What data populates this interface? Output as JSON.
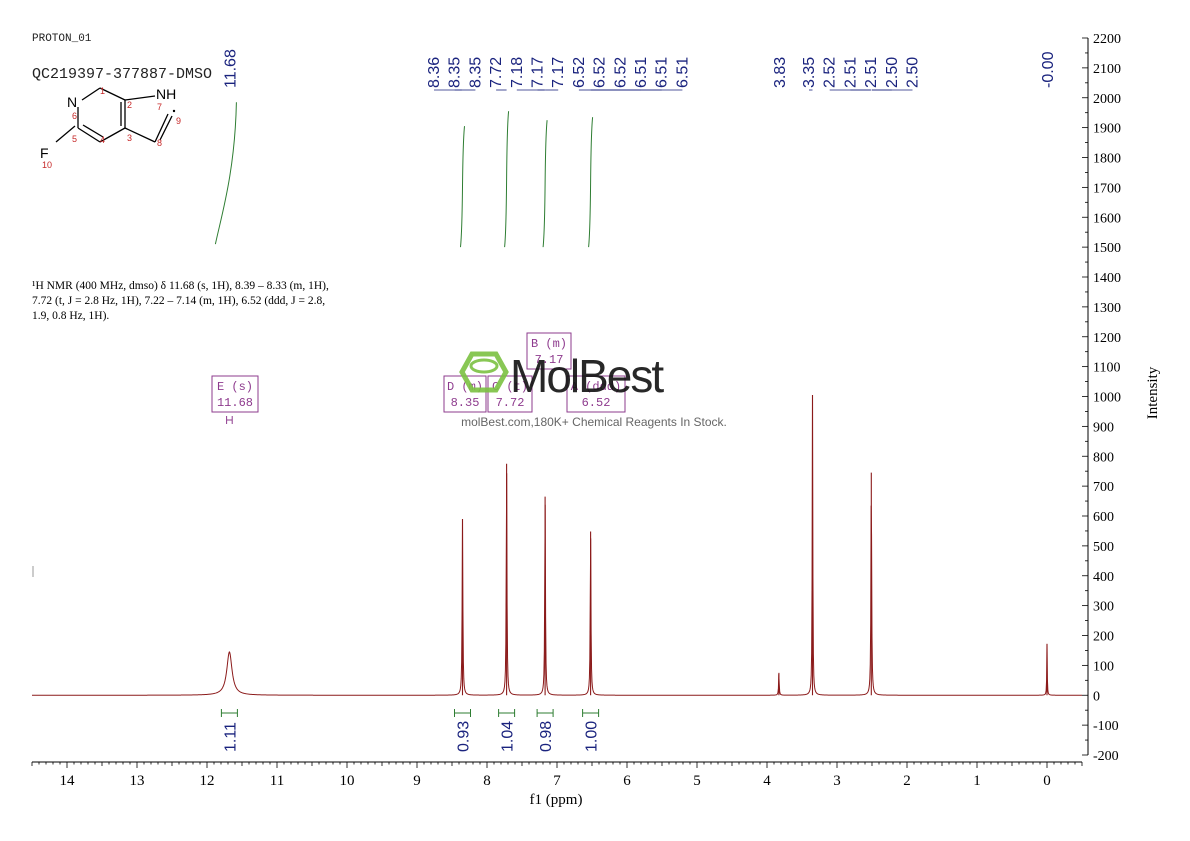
{
  "header": {
    "experiment": "PROTON_01",
    "sample_id": "QC219397-377887-DMSO"
  },
  "molecule": {
    "atoms": {
      "N_ring": "N",
      "NH": "NH",
      "F": "F"
    },
    "numbers": [
      "1",
      "2",
      "3",
      "4",
      "5",
      "6",
      "7",
      "8",
      "9",
      "10"
    ]
  },
  "description": {
    "line1": "¹H NMR (400 MHz, dmso) δ 11.68 (s, 1H), 8.39 – 8.33 (m, 1H),",
    "line2": "7.72 (t, J = 2.8 Hz, 1H), 7.22 – 7.14 (m, 1H), 6.52 (ddd, J = 2.8,",
    "line3": "1.9, 0.8 Hz, 1H)."
  },
  "watermark": {
    "brand": "MolBest",
    "tagline": "molBest.com,180K+ Chemical Reagents In Stock."
  },
  "colors": {
    "spectrum": "#8b1a1a",
    "peak_label": "#1a237e",
    "integral": "#2e7d32",
    "multiplet_box": "#8e3b8e",
    "axis": "#000000",
    "watermark": "#7cc242"
  },
  "chart_data": {
    "type": "line",
    "xlabel": "f1 (ppm)",
    "ylabel": "Intensity",
    "xlim": [
      14.5,
      -0.5
    ],
    "ylim": [
      -200,
      2200
    ],
    "x_ticks": [
      14,
      13,
      12,
      11,
      10,
      9,
      8,
      7,
      6,
      5,
      4,
      3,
      2,
      1,
      0
    ],
    "y_ticks": [
      2200,
      2100,
      2000,
      1900,
      1800,
      1700,
      1600,
      1500,
      1400,
      1300,
      1200,
      1100,
      1000,
      900,
      800,
      700,
      600,
      500,
      400,
      300,
      200,
      100,
      0,
      -100,
      -200
    ],
    "peaks": [
      {
        "ppm": 11.68,
        "height": 145,
        "width": 0.045
      },
      {
        "ppm": 8.35,
        "height": 590,
        "width": 0.006
      },
      {
        "ppm": 7.72,
        "height": 775,
        "width": 0.006
      },
      {
        "ppm": 7.17,
        "height": 665,
        "width": 0.006
      },
      {
        "ppm": 6.52,
        "height": 548,
        "width": 0.006
      },
      {
        "ppm": 3.83,
        "height": 75,
        "width": 0.005
      },
      {
        "ppm": 3.35,
        "height": 1005,
        "width": 0.005
      },
      {
        "ppm": 2.51,
        "height": 745,
        "width": 0.006
      },
      {
        "ppm": 0.0,
        "height": 172,
        "width": 0.004
      }
    ],
    "peak_labels": [
      {
        "group": "11.68",
        "labels": [
          "11.68"
        ]
      },
      {
        "group": "aromatic",
        "labels": [
          "8.36",
          "8.35",
          "8.35",
          "7.72",
          "7.18",
          "7.17",
          "7.17",
          "6.52",
          "6.52",
          "6.52",
          "6.51",
          "6.51",
          "6.51"
        ]
      },
      {
        "group": "3.83",
        "labels": [
          "3.83"
        ]
      },
      {
        "group": "dmso",
        "labels": [
          "3.35",
          "2.52",
          "2.51",
          "2.51",
          "2.50",
          "2.50"
        ]
      },
      {
        "group": "tms",
        "labels": [
          "-0.00"
        ]
      }
    ],
    "integrals": [
      {
        "ppm": 11.68,
        "value": "1.11"
      },
      {
        "ppm": 8.35,
        "value": "0.93"
      },
      {
        "ppm": 7.72,
        "value": "1.04"
      },
      {
        "ppm": 7.17,
        "value": "0.98"
      },
      {
        "ppm": 6.52,
        "value": "1.00"
      }
    ],
    "multiplets": [
      {
        "letter": "E",
        "mult": "(s)",
        "shift": "11.68"
      },
      {
        "letter": "D",
        "mult": "(m)",
        "shift": "8.35"
      },
      {
        "letter": "C",
        "mult": "(t)",
        "shift": "7.72"
      },
      {
        "letter": "B",
        "mult": "(m)",
        "shift": "7.17"
      },
      {
        "letter": "A",
        "mult": "(ddd)",
        "shift": "6.52"
      }
    ]
  }
}
